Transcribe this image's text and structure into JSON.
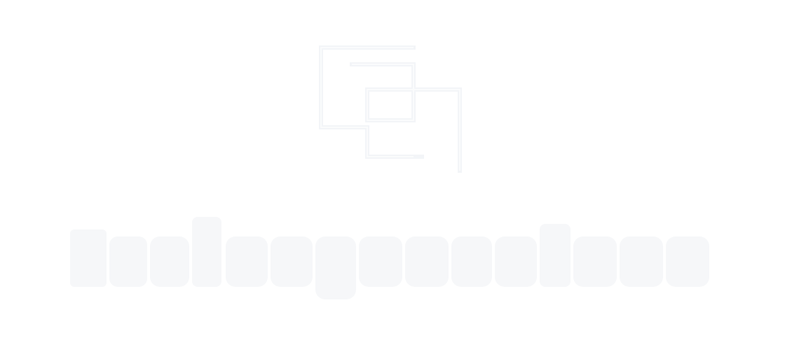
{
  "brand": {
    "logo_icon": "monogram-icon",
    "wordmark_text": "",
    "colors": {
      "background": "#ffffff",
      "mark": "#f6f7f9",
      "mark_shadow": "#eceff3"
    }
  }
}
